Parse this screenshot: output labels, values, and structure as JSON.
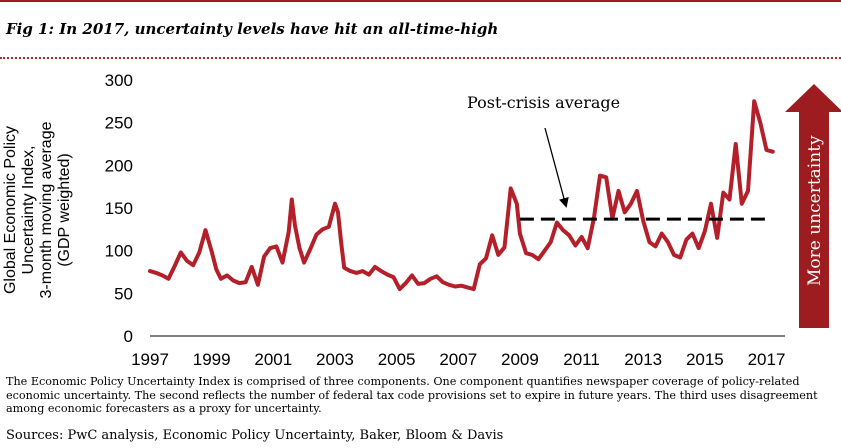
{
  "title": "Fig 1: In 2017, uncertainty levels have hit an all-time-high",
  "note": "The Economic Policy Uncertainty Index is comprised of three components. One component quantifies newspaper coverage of policy-related economic uncertainty. The second reflects the number of federal tax code provisions set to expire in future years. The third uses disagreement among economic forecasters as a proxy for uncertainty.",
  "sources": "Sources: PwC analysis, Economic Policy Uncertainty, Baker, Bloom & Davis",
  "colors": {
    "series": "#b3202a",
    "accent": "#9c1c1f",
    "reference_line": "#000000"
  },
  "chart_data": {
    "type": "line",
    "ylabel": "Global Economic Policy Uncertainty Index, 3-month moving average (GDP weighted)",
    "xlabel": "",
    "ylim": [
      0,
      300
    ],
    "yticks": [
      0,
      50,
      100,
      150,
      200,
      250,
      300
    ],
    "xlim": [
      1997,
      2017.6
    ],
    "xticks": [
      1997,
      1999,
      2001,
      2003,
      2005,
      2007,
      2009,
      2011,
      2013,
      2015,
      2017
    ],
    "grid": false,
    "legend": "none",
    "series": [
      {
        "x": [
          1997.0,
          1997.2,
          1997.4,
          1997.6,
          1997.8,
          1998.0,
          1998.2,
          1998.4,
          1998.6,
          1998.8,
          1999.0,
          1999.15,
          1999.3,
          1999.5,
          1999.7,
          1999.9,
          2000.1,
          2000.3,
          2000.5,
          2000.7,
          2000.9,
          2001.1,
          2001.3,
          2001.5,
          2001.6,
          2001.7,
          2001.85,
          2002.0,
          2002.2,
          2002.4,
          2002.6,
          2002.8,
          2003.0,
          2003.1,
          2003.2,
          2003.3,
          2003.5,
          2003.7,
          2003.9,
          2004.1,
          2004.3,
          2004.5,
          2004.7,
          2004.9,
          2005.1,
          2005.3,
          2005.5,
          2005.7,
          2005.9,
          2006.1,
          2006.3,
          2006.5,
          2006.7,
          2006.9,
          2007.1,
          2007.3,
          2007.5,
          2007.7,
          2007.9,
          2008.1,
          2008.3,
          2008.5,
          2008.7,
          2008.9,
          2009.0,
          2009.2,
          2009.4,
          2009.6,
          2009.8,
          2010.0,
          2010.2,
          2010.4,
          2010.6,
          2010.8,
          2011.0,
          2011.2,
          2011.4,
          2011.6,
          2011.8,
          2012.0,
          2012.2,
          2012.4,
          2012.6,
          2012.8,
          2013.0,
          2013.2,
          2013.4,
          2013.6,
          2013.8,
          2014.0,
          2014.2,
          2014.4,
          2014.6,
          2014.8,
          2015.0,
          2015.2,
          2015.4,
          2015.6,
          2015.8,
          2016.0,
          2016.2,
          2016.4,
          2016.6,
          2016.8,
          2017.0,
          2017.2
        ],
        "y": [
          76,
          74,
          71,
          67,
          82,
          98,
          88,
          83,
          98,
          124,
          99,
          78,
          67,
          71,
          65,
          62,
          63,
          81,
          60,
          93,
          103,
          105,
          86,
          122,
          160,
          130,
          103,
          86,
          102,
          119,
          125,
          128,
          155,
          145,
          110,
          80,
          76,
          74,
          76,
          72,
          81,
          76,
          72,
          69,
          55,
          62,
          71,
          61,
          62,
          67,
          70,
          63,
          60,
          58,
          59,
          57,
          55,
          84,
          91,
          118,
          95,
          104,
          173,
          155,
          120,
          97,
          95,
          90,
          100,
          110,
          133,
          124,
          118,
          106,
          116,
          103,
          138,
          188,
          186,
          138,
          170,
          145,
          155,
          170,
          135,
          110,
          105,
          120,
          110,
          95,
          92,
          113,
          120,
          103,
          123,
          155,
          115,
          168,
          160,
          225,
          155,
          170,
          275,
          250,
          218,
          216
        ]
      }
    ],
    "reference_line": {
      "label": "Post-crisis average",
      "y": 137,
      "x_start": 2009.0,
      "x_end": 2017.0
    },
    "arrow_label": "More uncertainty"
  }
}
